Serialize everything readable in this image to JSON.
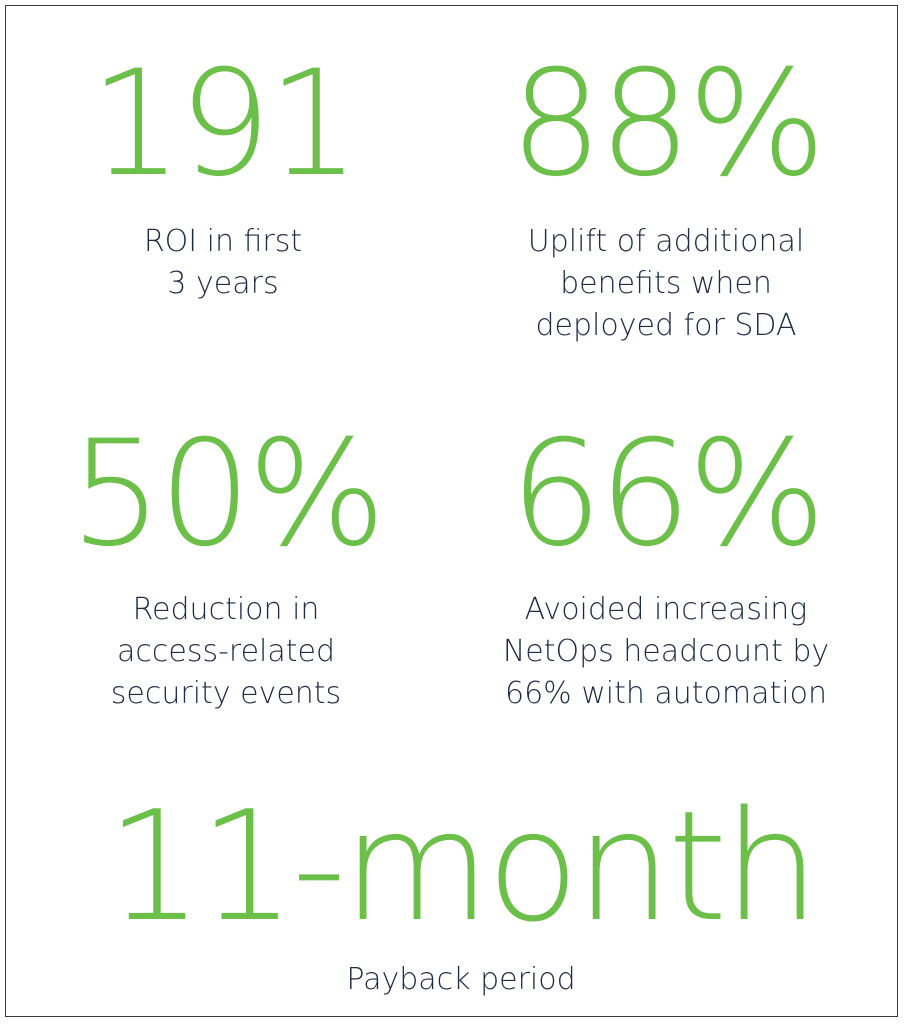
{
  "stats": [
    {
      "value": "191",
      "label": "ROI in first\n3 years"
    },
    {
      "value": "88%",
      "label": "Uplift of additional\nbenefits when\ndeployed for SDA"
    },
    {
      "value": "50%",
      "label": "Reduction in\naccess-related\nsecurity events"
    },
    {
      "value": "66%",
      "label": "Avoided increasing\nNetOps headcount by\n66% with automation"
    },
    {
      "value": "11-month",
      "label": "Payback period"
    }
  ],
  "colors": {
    "accent": "#6cc04a",
    "text": "#1f2a44",
    "border": "#3a3a3a"
  }
}
